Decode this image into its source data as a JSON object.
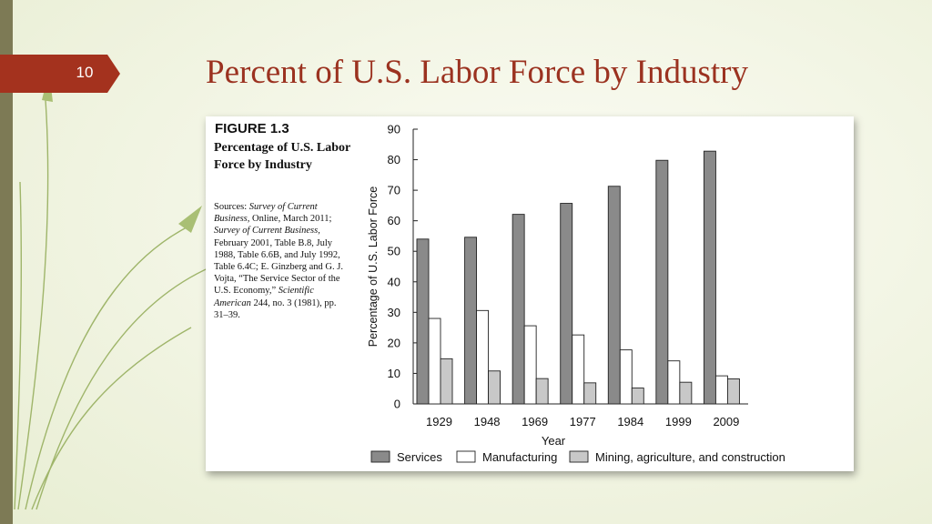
{
  "slide": {
    "number": "10",
    "title": "Percent of U.S. Labor Force by Industry"
  },
  "figure": {
    "label": "FIGURE 1.3",
    "caption": "Percentage of U.S. Labor Force by Industry",
    "sources": [
      {
        "t": "Sources: ",
        "i": false
      },
      {
        "t": "Survey of Current Business,",
        "i": true
      },
      {
        "t": " Online, March 2011; ",
        "i": false
      },
      {
        "t": "Survey of Current Business,",
        "i": true
      },
      {
        "t": " February 2001, Table B.8, July 1988, Table 6.6B, and July 1992, Table 6.4C; E. Ginzberg and G. J. Vojta, “The Service Sector of the U.S. Economy,” ",
        "i": false
      },
      {
        "t": "Scientific American",
        "i": true
      },
      {
        "t": " 244, no. 3 (1981), pp. 31–39.",
        "i": false
      }
    ]
  },
  "colors": {
    "accent": "#a4321e",
    "services": "#8a8a8a",
    "manufacturing": "#ffffff",
    "mining": "#c8c8c8"
  },
  "chart_data": {
    "type": "bar",
    "title": "",
    "xlabel": "Year",
    "ylabel": "Percentage of U.S. Labor Force",
    "ylim": [
      0,
      90
    ],
    "yticks": [
      0,
      10,
      20,
      30,
      40,
      50,
      60,
      70,
      80,
      90
    ],
    "grid": false,
    "legend_position": "bottom",
    "categories": [
      "1929",
      "1948",
      "1969",
      "1977",
      "1984",
      "1999",
      "2009"
    ],
    "series": [
      {
        "name": "Services",
        "values": [
          54,
          54.6,
          62.1,
          65.7,
          71.3,
          79.8,
          82.8
        ],
        "color": "#8a8a8a"
      },
      {
        "name": "Manufacturing",
        "values": [
          28,
          30.6,
          25.6,
          22.6,
          17.7,
          14.1,
          9.2
        ],
        "color": "#ffffff"
      },
      {
        "name": "Mining, agriculture, and construction",
        "values": [
          14.8,
          10.8,
          8.3,
          6.9,
          5.2,
          7.1,
          8.2
        ],
        "color": "#c8c8c8"
      }
    ]
  }
}
